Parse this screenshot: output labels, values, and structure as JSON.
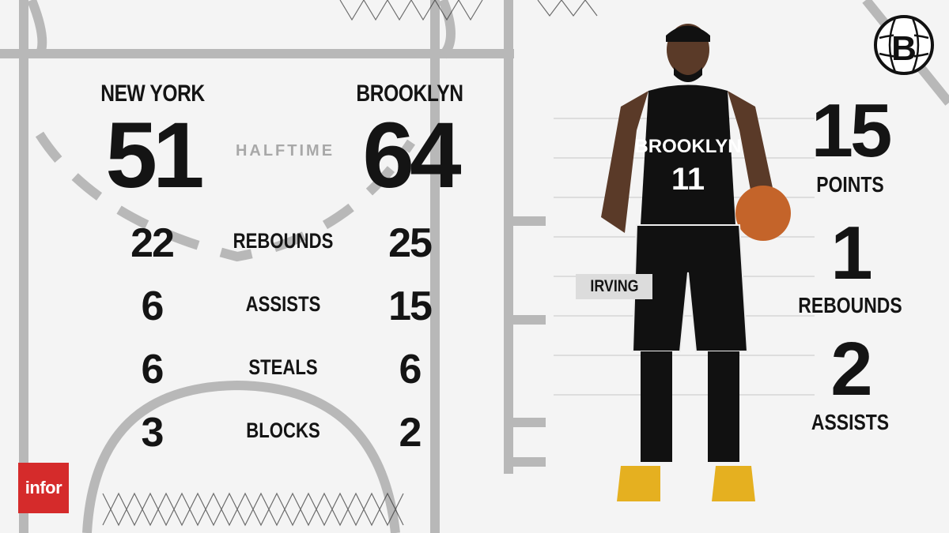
{
  "game": {
    "period": "HALFTIME"
  },
  "away": {
    "name": "NEW YORK",
    "score": "51",
    "rebounds": "22",
    "assists": "6",
    "steals": "6",
    "blocks": "3"
  },
  "home": {
    "name": "BROOKLYN",
    "score": "64",
    "rebounds": "25",
    "assists": "15",
    "steals": "6",
    "blocks": "2"
  },
  "stat_labels": {
    "rebounds": "REBOUNDS",
    "assists": "ASSISTS",
    "steals": "STEALS",
    "blocks": "BLOCKS"
  },
  "player": {
    "name": "IRVING",
    "jersey_team": "BROOKLYN",
    "number": "11",
    "stats": [
      {
        "value": "15",
        "label": "POINTS"
      },
      {
        "value": "1",
        "label": "REBOUNDS"
      },
      {
        "value": "2",
        "label": "ASSISTS"
      }
    ]
  },
  "sponsor": {
    "name": "infor",
    "color": "#d52b2b"
  },
  "team_logo": {
    "letter": "B",
    "icon": "nets-basketball-logo"
  },
  "colors": {
    "court_lines": "#b5b5b5",
    "background": "#f4f4f4",
    "text": "#141414"
  }
}
